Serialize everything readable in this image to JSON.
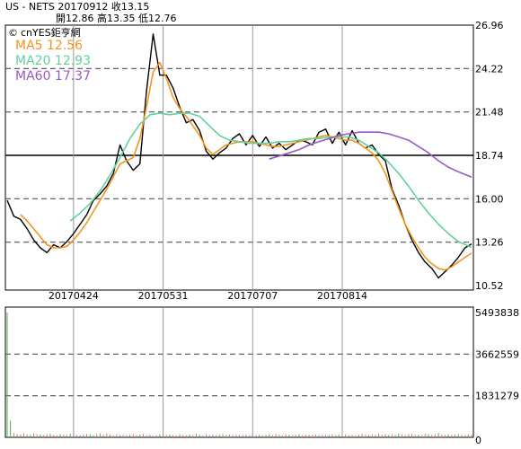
{
  "header": {
    "line1": "US - NETS   20170912   收13.15",
    "line2": "開12.86   高13.35   低12.76"
  },
  "credit": "cnYES鉅亨網",
  "chart_data": [
    {
      "type": "line",
      "yticks": [
        "26.96",
        "24.22",
        "21.48",
        "18.74",
        "16.00",
        "13.26",
        "10.52"
      ],
      "ylim": [
        10.52,
        26.96
      ],
      "xticks": [
        "20170424",
        "20170531",
        "20170707",
        "20170814"
      ],
      "reference_line": 18.74,
      "grid": true,
      "legend_placement": "top-left",
      "series": [
        {
          "name": "",
          "color": "#000000",
          "values": [
            [
              0,
              15.9
            ],
            [
              2,
              14.9
            ],
            [
              4,
              14.7
            ],
            [
              6,
              14.1
            ],
            [
              8,
              13.4
            ],
            [
              10,
              12.9
            ],
            [
              12,
              12.6
            ],
            [
              14,
              13.1
            ],
            [
              16,
              12.9
            ],
            [
              18,
              13.3
            ],
            [
              20,
              13.8
            ],
            [
              22,
              14.4
            ],
            [
              24,
              15.0
            ],
            [
              26,
              15.9
            ],
            [
              28,
              16.3
            ],
            [
              30,
              16.8
            ],
            [
              32,
              17.6
            ],
            [
              34,
              19.4
            ],
            [
              36,
              18.4
            ],
            [
              38,
              17.8
            ],
            [
              40,
              18.2
            ],
            [
              42,
              22.8
            ],
            [
              44,
              26.4
            ],
            [
              46,
              23.8
            ],
            [
              48,
              23.8
            ],
            [
              50,
              23.0
            ],
            [
              52,
              21.8
            ],
            [
              54,
              20.8
            ],
            [
              56,
              21.0
            ],
            [
              58,
              20.3
            ],
            [
              60,
              19.0
            ],
            [
              62,
              18.5
            ],
            [
              64,
              18.9
            ],
            [
              66,
              19.2
            ],
            [
              68,
              19.8
            ],
            [
              70,
              20.1
            ],
            [
              72,
              19.4
            ],
            [
              74,
              20.0
            ],
            [
              76,
              19.3
            ],
            [
              78,
              19.9
            ],
            [
              80,
              19.2
            ],
            [
              82,
              19.5
            ],
            [
              84,
              19.1
            ],
            [
              86,
              19.4
            ],
            [
              88,
              19.7
            ],
            [
              90,
              19.6
            ],
            [
              92,
              19.4
            ],
            [
              94,
              20.2
            ],
            [
              96,
              20.4
            ],
            [
              98,
              19.5
            ],
            [
              100,
              20.2
            ],
            [
              102,
              19.4
            ],
            [
              104,
              20.3
            ],
            [
              106,
              19.5
            ],
            [
              108,
              19.2
            ],
            [
              110,
              19.4
            ],
            [
              112,
              18.8
            ],
            [
              114,
              18.4
            ],
            [
              116,
              16.6
            ],
            [
              118,
              15.6
            ],
            [
              120,
              14.4
            ],
            [
              122,
              13.4
            ],
            [
              124,
              12.6
            ],
            [
              126,
              12.0
            ],
            [
              128,
              11.6
            ],
            [
              130,
              11.0
            ],
            [
              132,
              11.4
            ],
            [
              134,
              11.8
            ],
            [
              136,
              12.3
            ],
            [
              138,
              12.9
            ],
            [
              140,
              13.15
            ]
          ]
        },
        {
          "name": "MA5 12.56",
          "color": "#f7941d",
          "values": [
            [
              4,
              15.0
            ],
            [
              6,
              14.6
            ],
            [
              8,
              14.1
            ],
            [
              10,
              13.6
            ],
            [
              12,
              13.1
            ],
            [
              14,
              12.9
            ],
            [
              16,
              12.9
            ],
            [
              18,
              13.0
            ],
            [
              20,
              13.4
            ],
            [
              22,
              13.9
            ],
            [
              24,
              14.5
            ],
            [
              26,
              15.2
            ],
            [
              28,
              15.9
            ],
            [
              30,
              16.6
            ],
            [
              32,
              17.4
            ],
            [
              34,
              18.2
            ],
            [
              36,
              18.4
            ],
            [
              38,
              18.6
            ],
            [
              40,
              19.8
            ],
            [
              42,
              21.8
            ],
            [
              44,
              24.0
            ],
            [
              46,
              24.6
            ],
            [
              48,
              23.6
            ],
            [
              50,
              22.4
            ],
            [
              52,
              21.7
            ],
            [
              54,
              21.2
            ],
            [
              56,
              20.6
            ],
            [
              58,
              20.0
            ],
            [
              60,
              19.2
            ],
            [
              62,
              18.8
            ],
            [
              64,
              19.1
            ],
            [
              66,
              19.4
            ],
            [
              68,
              19.5
            ],
            [
              70,
              19.6
            ],
            [
              72,
              19.6
            ],
            [
              74,
              19.6
            ],
            [
              76,
              19.5
            ],
            [
              78,
              19.4
            ],
            [
              80,
              19.3
            ],
            [
              82,
              19.3
            ],
            [
              84,
              19.4
            ],
            [
              86,
              19.5
            ],
            [
              88,
              19.6
            ],
            [
              90,
              19.7
            ],
            [
              92,
              19.8
            ],
            [
              94,
              19.9
            ],
            [
              96,
              20.0
            ],
            [
              98,
              19.9
            ],
            [
              100,
              19.8
            ],
            [
              102,
              19.7
            ],
            [
              104,
              19.7
            ],
            [
              106,
              19.5
            ],
            [
              108,
              19.2
            ],
            [
              110,
              18.9
            ],
            [
              112,
              18.4
            ],
            [
              114,
              17.6
            ],
            [
              116,
              16.5
            ],
            [
              118,
              15.4
            ],
            [
              120,
              14.4
            ],
            [
              122,
              13.6
            ],
            [
              124,
              12.9
            ],
            [
              126,
              12.3
            ],
            [
              128,
              11.9
            ],
            [
              130,
              11.6
            ],
            [
              132,
              11.5
            ],
            [
              134,
              11.7
            ],
            [
              136,
              12.0
            ],
            [
              138,
              12.3
            ],
            [
              140,
              12.56
            ]
          ]
        },
        {
          "name": "MA20 12.93",
          "color": "#5fd39c",
          "values": [
            [
              19,
              14.6
            ],
            [
              22,
              15.1
            ],
            [
              25,
              15.7
            ],
            [
              28,
              16.5
            ],
            [
              31,
              17.5
            ],
            [
              34,
              18.6
            ],
            [
              37,
              19.8
            ],
            [
              40,
              20.7
            ],
            [
              43,
              21.3
            ],
            [
              46,
              21.4
            ],
            [
              49,
              21.3
            ],
            [
              52,
              21.4
            ],
            [
              55,
              21.4
            ],
            [
              58,
              21.2
            ],
            [
              61,
              20.6
            ],
            [
              64,
              20.0
            ],
            [
              67,
              19.7
            ],
            [
              70,
              19.6
            ],
            [
              73,
              19.5
            ],
            [
              76,
              19.5
            ],
            [
              79,
              19.5
            ],
            [
              82,
              19.6
            ],
            [
              85,
              19.6
            ],
            [
              88,
              19.7
            ],
            [
              91,
              19.8
            ],
            [
              94,
              19.8
            ],
            [
              97,
              19.9
            ],
            [
              100,
              19.9
            ],
            [
              103,
              19.9
            ],
            [
              106,
              19.7
            ],
            [
              109,
              19.3
            ],
            [
              112,
              18.9
            ],
            [
              115,
              18.3
            ],
            [
              118,
              17.6
            ],
            [
              121,
              16.8
            ],
            [
              124,
              15.9
            ],
            [
              127,
              15.1
            ],
            [
              130,
              14.4
            ],
            [
              133,
              13.8
            ],
            [
              136,
              13.3
            ],
            [
              140,
              12.93
            ]
          ]
        },
        {
          "name": "MA60 17.37",
          "color": "#9b59c6",
          "values": [
            [
              79,
              18.5
            ],
            [
              82,
              18.7
            ],
            [
              85,
              18.9
            ],
            [
              88,
              19.1
            ],
            [
              91,
              19.4
            ],
            [
              94,
              19.6
            ],
            [
              97,
              19.8
            ],
            [
              100,
              20.0
            ],
            [
              103,
              20.1
            ],
            [
              106,
              20.2
            ],
            [
              109,
              20.2
            ],
            [
              112,
              20.2
            ],
            [
              115,
              20.1
            ],
            [
              118,
              19.9
            ],
            [
              121,
              19.7
            ],
            [
              124,
              19.3
            ],
            [
              127,
              18.9
            ],
            [
              130,
              18.4
            ],
            [
              133,
              18.0
            ],
            [
              136,
              17.7
            ],
            [
              140,
              17.37
            ]
          ]
        }
      ]
    },
    {
      "type": "bar",
      "yticks": [
        "5493838",
        "3662559",
        "1831279",
        "0"
      ],
      "ylim": [
        0,
        5493838
      ],
      "grid": true,
      "color_up": "#e57373",
      "color_down": "#4caf50",
      "values": [
        5493838,
        730000,
        190000,
        150000,
        120000,
        160000,
        130000,
        110000,
        170000,
        140000,
        120000,
        100000,
        130000,
        150000,
        110000,
        90000,
        140000,
        120000,
        100000,
        160000,
        130000,
        110000,
        90000,
        120000,
        150000,
        130000,
        100000,
        140000,
        180000,
        120000,
        170000,
        110000,
        90000,
        130000,
        100000,
        120000,
        90000,
        110000,
        140000,
        100000,
        120000,
        150000,
        90000,
        110000,
        80000,
        100000,
        130000,
        90000,
        110000,
        120000,
        100000,
        80000,
        140000,
        110000,
        90000,
        120000,
        100000,
        150000,
        110000,
        90000,
        130000,
        100000,
        120000,
        90000,
        110000,
        140000,
        100000,
        120000,
        110000,
        130000,
        100000,
        110000,
        120000,
        90000,
        130000,
        100000,
        110000,
        90000,
        120000,
        140000,
        100000,
        150000,
        110000,
        90000,
        130000,
        120000,
        100000,
        110000,
        140000,
        90000,
        120000,
        110000,
        100000,
        130000,
        90000,
        120000,
        110000,
        100000,
        140000,
        90000,
        120000,
        110000,
        130000,
        100000,
        120000,
        90000,
        110000,
        160000,
        120000,
        100000,
        130000,
        110000,
        150000,
        120000,
        140000,
        100000,
        130000,
        110000,
        160000,
        120000,
        100000,
        130000,
        140000,
        110000,
        120000,
        100000,
        150000,
        130000,
        110000,
        140000,
        190000,
        120000,
        100000,
        130000,
        110000,
        120000,
        140000,
        110000,
        100000,
        130000,
        120000
      ]
    }
  ]
}
